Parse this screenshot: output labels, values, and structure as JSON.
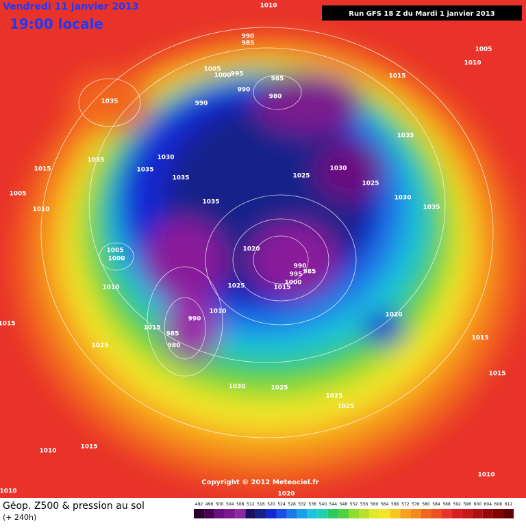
{
  "header": {
    "date": "Vendredi 11 janvier 2013",
    "time": "19:00 locale",
    "run": "Run GFS 18 Z du Mardi 1 janvier 2013"
  },
  "isobar_labels": [
    "1010",
    "990",
    "985",
    "1005",
    "1010",
    "1005",
    "995",
    "1000",
    "985",
    "980",
    "990",
    "990",
    "1015",
    "1035",
    "1035",
    "1030",
    "1035",
    "1035",
    "1015",
    "1030",
    "1025",
    "1035",
    "1025",
    "1005",
    "1030",
    "1010",
    "1035",
    "1035",
    "1020",
    "1005",
    "1000",
    "990",
    "985",
    "995",
    "1000",
    "1010",
    "1025",
    "1015",
    "1020",
    "990",
    "1010",
    "1015",
    "1015",
    "985",
    "980",
    "1025",
    "1015",
    "1015",
    "1030",
    "1025",
    "1025",
    "1025",
    "1010",
    "1015",
    "1010",
    "1010",
    "1020"
  ],
  "copyright": "Copyright © 2012 Meteociel.fr",
  "footer": {
    "title": "Géop. Z500 & pression au sol",
    "subtitle": "(+ 240h)"
  },
  "colorbar": {
    "labels": [
      "492",
      "496",
      "500",
      "504",
      "508",
      "512",
      "516",
      "520",
      "524",
      "528",
      "532",
      "536",
      "540",
      "544",
      "548",
      "552",
      "556",
      "560",
      "564",
      "568",
      "572",
      "576",
      "580",
      "584",
      "588",
      "592",
      "596",
      "600",
      "604",
      "608",
      "612"
    ]
  }
}
